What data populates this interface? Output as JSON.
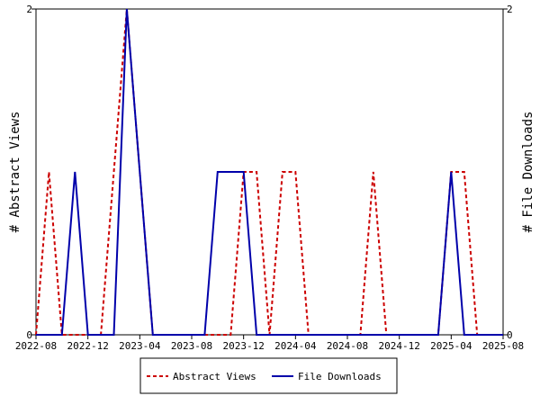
{
  "chart_data": {
    "type": "line",
    "x_start": "2022-08",
    "x_end": "2025-08",
    "x_ticks": [
      "2022-08",
      "2022-12",
      "2023-04",
      "2023-08",
      "2023-12",
      "2024-04",
      "2024-08",
      "2024-12",
      "2025-04",
      "2025-08"
    ],
    "ylim": [
      0,
      2
    ],
    "y_ticks": [
      "0",
      "2"
    ],
    "y2_ticks": [
      "0",
      "2"
    ],
    "ylabel": "# Abstract Views",
    "y2label": "# File Downloads",
    "legend_position": "bottom",
    "series": [
      {
        "name": "Abstract Views",
        "color": "#cc0000",
        "dash": "dashed",
        "x": [
          "2022-08",
          "2022-09",
          "2022-10",
          "2022-11",
          "2022-12",
          "2023-01",
          "2023-02",
          "2023-03",
          "2023-04",
          "2023-05",
          "2023-06",
          "2023-07",
          "2023-08",
          "2023-09",
          "2023-10",
          "2023-11",
          "2023-12",
          "2024-01",
          "2024-02",
          "2024-03",
          "2024-04",
          "2024-05",
          "2024-06",
          "2024-07",
          "2024-08",
          "2024-09",
          "2024-10",
          "2024-11",
          "2024-12",
          "2025-01",
          "2025-02",
          "2025-03",
          "2025-04",
          "2025-05",
          "2025-06",
          "2025-07",
          "2025-08"
        ],
        "values": [
          0,
          1,
          0,
          0,
          0,
          0,
          1,
          2,
          1,
          0,
          0,
          0,
          0,
          0,
          0,
          0,
          1,
          1,
          0,
          1,
          1,
          0,
          0,
          0,
          0,
          0,
          1,
          0,
          0,
          0,
          0,
          0,
          1,
          1,
          0,
          0,
          0
        ]
      },
      {
        "name": "File Downloads",
        "color": "#0000aa",
        "dash": "solid",
        "x": [
          "2022-08",
          "2022-09",
          "2022-10",
          "2022-11",
          "2022-12",
          "2023-01",
          "2023-02",
          "2023-03",
          "2023-04",
          "2023-05",
          "2023-06",
          "2023-07",
          "2023-08",
          "2023-09",
          "2023-10",
          "2023-11",
          "2023-12",
          "2024-01",
          "2024-02",
          "2024-03",
          "2024-04",
          "2024-05",
          "2024-06",
          "2024-07",
          "2024-08",
          "2024-09",
          "2024-10",
          "2024-11",
          "2024-12",
          "2025-01",
          "2025-02",
          "2025-03",
          "2025-04",
          "2025-05",
          "2025-06",
          "2025-07",
          "2025-08"
        ],
        "values": [
          0,
          0,
          0,
          1,
          0,
          0,
          0,
          2,
          1,
          0,
          0,
          0,
          0,
          0,
          1,
          1,
          1,
          0,
          0,
          0,
          0,
          0,
          0,
          0,
          0,
          0,
          0,
          0,
          0,
          0,
          0,
          0,
          1,
          0,
          0,
          0,
          0
        ]
      }
    ]
  }
}
